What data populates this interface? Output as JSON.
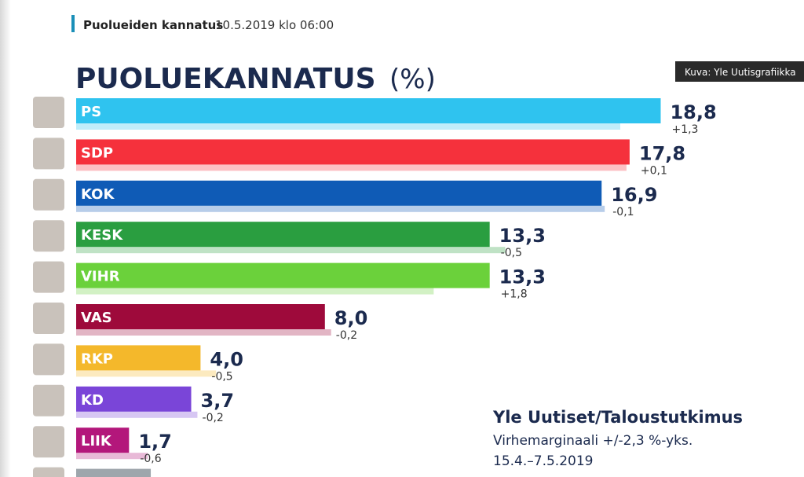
{
  "header": {
    "section": "Puolueiden kannatus",
    "date": "10.5.2019 klo 06:00"
  },
  "credit": "Kuva: Yle Uutisgrafiikka",
  "chart_data": {
    "type": "bar",
    "orientation": "horizontal",
    "title": "PUOLUEKANNATUS",
    "unit": "(%)",
    "categories": [
      "PS",
      "SDP",
      "KOK",
      "KESK",
      "VIHR",
      "VAS",
      "RKP",
      "KD",
      "LIIK",
      null
    ],
    "values": [
      18.8,
      17.8,
      16.9,
      13.3,
      13.3,
      8.0,
      4.0,
      3.7,
      1.7,
      2.4
    ],
    "value_labels": [
      "18,8",
      "17,8",
      "16,9",
      "13,3",
      "13,3",
      "8,0",
      "4,0",
      "3,7",
      "1,7",
      null
    ],
    "changes": [
      1.3,
      0.1,
      -0.1,
      -0.5,
      1.8,
      -0.2,
      -0.5,
      -0.2,
      -0.6,
      null
    ],
    "change_labels": [
      "+1,3",
      "+0,1",
      "-0,1",
      "-0,5",
      "+1,8",
      "-0,2",
      "-0,5",
      "-0,2",
      "-0,6",
      null
    ],
    "colors": [
      "#2fc3ef",
      "#f5313c",
      "#0f5bb6",
      "#2a9e40",
      "#6bd13b",
      "#9e0a3b",
      "#f4b82b",
      "#7a45d8",
      "#b3177b",
      "#9ea6ac"
    ],
    "source": {
      "name": "Yle Uutiset/Taloustutkimus",
      "margin": "Virhemarginaali  +/-2,3 %-yks.",
      "period": "15.4.–7.5.2019"
    }
  }
}
